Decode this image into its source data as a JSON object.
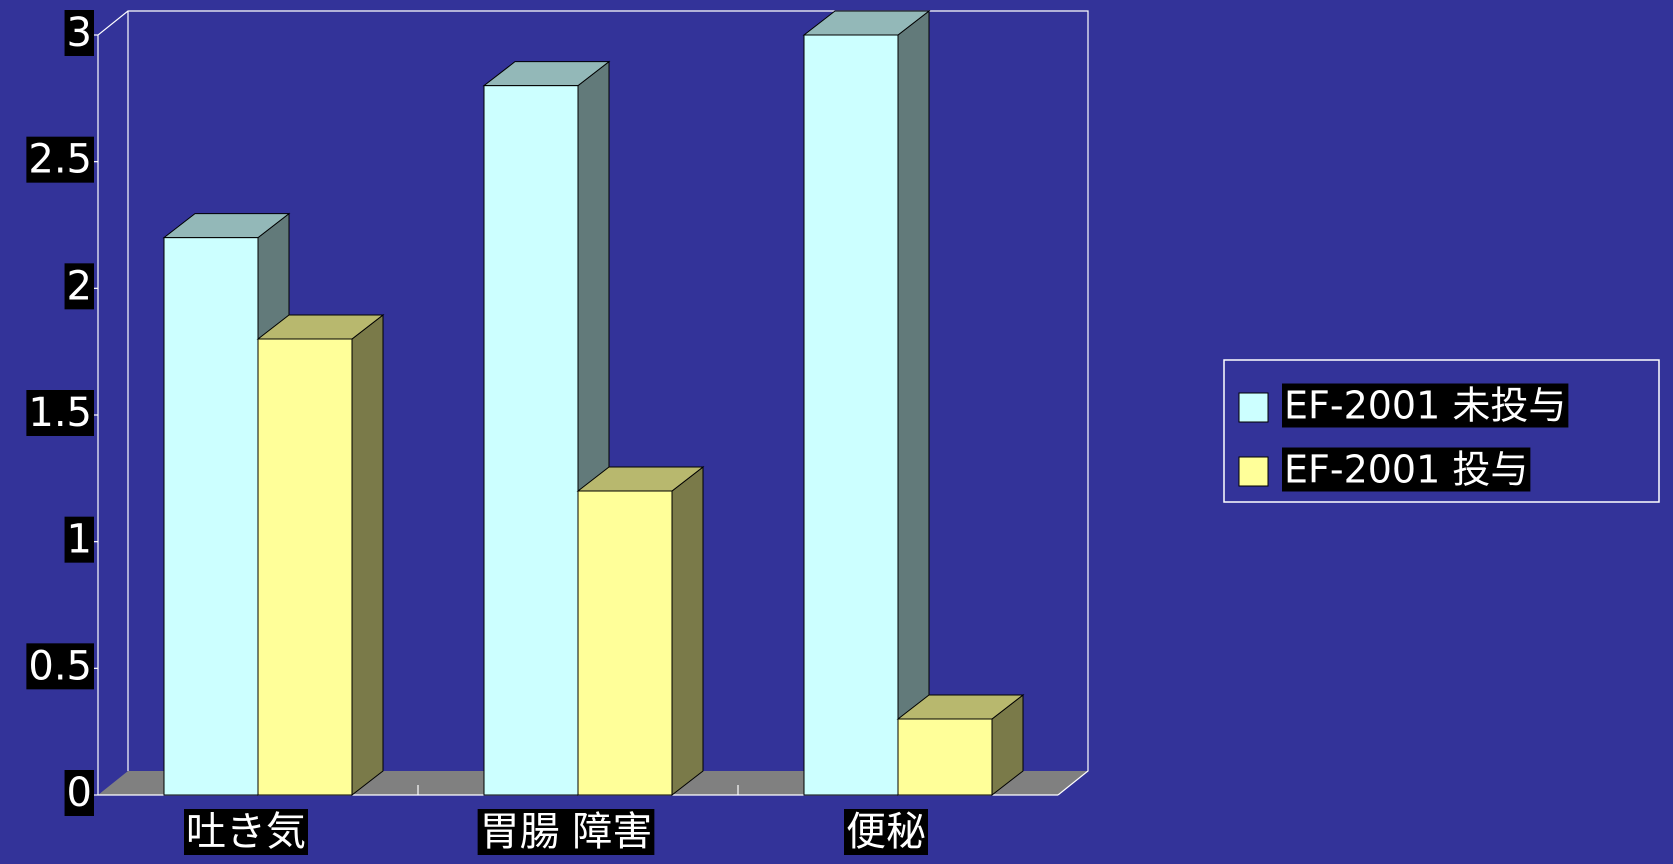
{
  "chart_data": {
    "type": "bar",
    "categories": [
      "吐き気",
      "胃腸 障害",
      "便秘"
    ],
    "series": [
      {
        "name": "EF-2001 未投与",
        "values": [
          2.2,
          2.8,
          3.0
        ],
        "color": "#CCFFFF"
      },
      {
        "name": "EF-2001 投与",
        "values": [
          1.8,
          1.2,
          0.3
        ],
        "color": "#FFFF99"
      }
    ],
    "ylim": [
      0,
      3
    ],
    "yticks": [
      "0",
      "0.5",
      "1",
      "1.5",
      "2",
      "2.5",
      "3"
    ],
    "legend_position": "right",
    "style": "3d-column",
    "background_color": "#333399",
    "floor_color": "#808080",
    "label_background": "#000000"
  }
}
